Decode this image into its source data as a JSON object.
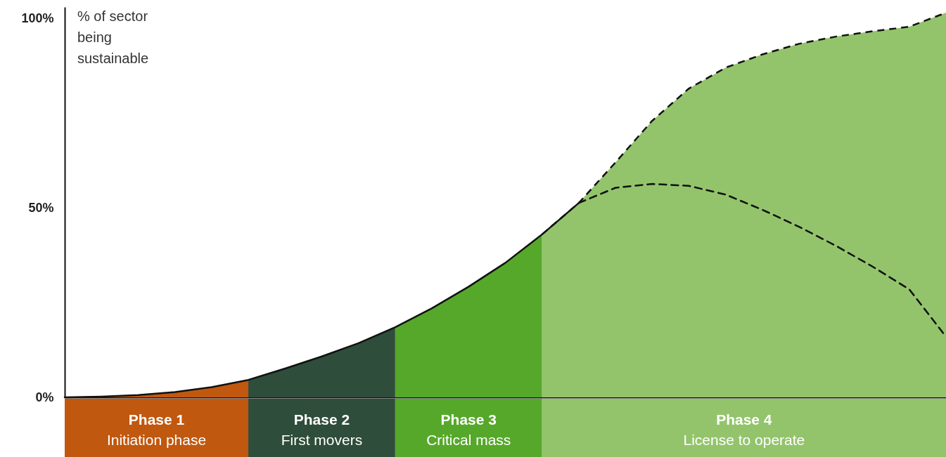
{
  "chart_data": {
    "type": "area",
    "ylabel": "% of sector being sustainable",
    "categories": [
      null,
      null,
      null,
      null,
      null,
      null,
      null,
      null,
      null,
      null,
      null,
      null,
      null,
      null,
      null,
      null,
      null,
      null,
      null,
      null,
      null,
      null,
      null,
      null,
      null
    ],
    "ylim": [
      0,
      103
    ],
    "yticks": [
      {
        "value": 0,
        "label": "0%"
      },
      {
        "value": 50,
        "label": "50%"
      },
      {
        "value": 100,
        "label": "100%"
      }
    ],
    "tick_labels": "y",
    "series": [
      {
        "name": "Phase 1",
        "color": "#c0580f",
        "values": [
          0,
          0.2,
          0.6,
          1.4,
          2.7,
          4.6,
          null,
          null,
          null,
          null,
          null,
          null,
          null,
          null,
          null,
          null,
          null,
          null,
          null,
          null,
          null,
          null,
          null,
          null,
          null
        ]
      },
      {
        "name": "Phase 2",
        "color": "#2e4d3a",
        "values": [
          null,
          null,
          null,
          null,
          null,
          4.6,
          7.6,
          10.8,
          14.3,
          18.5,
          null,
          null,
          null,
          null,
          null,
          null,
          null,
          null,
          null,
          null,
          null,
          null,
          null,
          null,
          null
        ]
      },
      {
        "name": "Phase 3",
        "color": "#56a82a",
        "values": [
          null,
          null,
          null,
          null,
          null,
          null,
          null,
          null,
          null,
          18.5,
          23.5,
          29.2,
          35.5,
          43,
          null,
          null,
          null,
          null,
          null,
          null,
          null,
          null,
          null,
          null,
          null
        ]
      },
      {
        "name": "Phase 4",
        "color": "#93c46b",
        "line_style": "dashed",
        "values": [
          null,
          null,
          null,
          null,
          null,
          null,
          null,
          null,
          null,
          null,
          null,
          null,
          null,
          43,
          51.3,
          62,
          73,
          81.5,
          87,
          90.5,
          93.3,
          95.2,
          96.6,
          97.8,
          101.5
        ]
      },
      {
        "type": "line",
        "color": "#111111",
        "line_style": "solid",
        "values": [
          0,
          0.2,
          0.6,
          1.4,
          2.7,
          4.6,
          7.6,
          10.8,
          14.3,
          18.5,
          23.5,
          29.2,
          35.5,
          43,
          51.3,
          null,
          null,
          null,
          null,
          null,
          null,
          null,
          null,
          null,
          null
        ]
      },
      {
        "type": "line",
        "color": "#111111",
        "line_style": "dashed",
        "values": [
          null,
          null,
          null,
          null,
          null,
          null,
          null,
          null,
          null,
          null,
          null,
          null,
          null,
          null,
          51.3,
          55.3,
          56.3,
          55.8,
          53.5,
          49.5,
          45,
          40,
          34.5,
          28.5,
          16
        ]
      }
    ],
    "annotations": [
      "Initiation phase",
      "First movers",
      "Critical mass",
      "License to operate"
    ]
  }
}
